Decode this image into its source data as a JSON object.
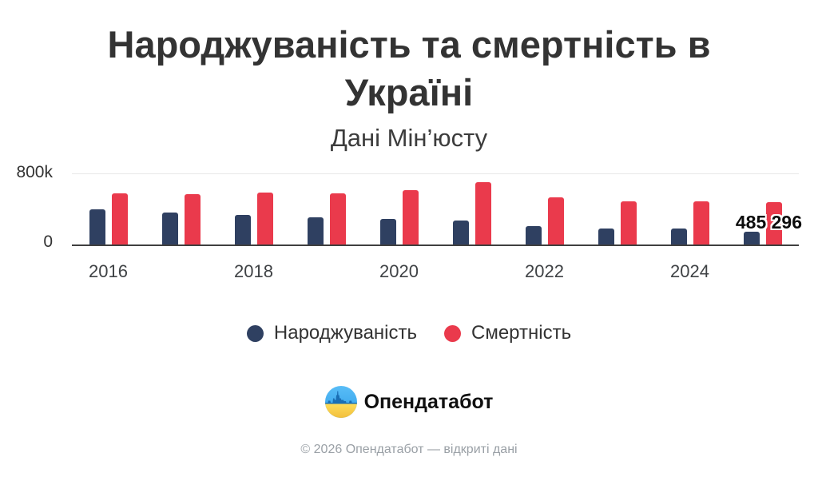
{
  "header": {
    "title": "Народжуваність та смертність в Україні",
    "subtitle": "Дані Мін’юсту"
  },
  "chart_data": {
    "type": "bar",
    "title": "Народжуваність та смертність в Україні",
    "subtitle": "Дані Мін’юсту",
    "categories": [
      "2016",
      "2017",
      "2018",
      "2019",
      "2020",
      "2021",
      "2022",
      "2023",
      "2024",
      "2025"
    ],
    "x_tick_labels": [
      "2016",
      "2018",
      "2020",
      "2022",
      "2024"
    ],
    "y_tick_labels": [
      "0",
      "800k"
    ],
    "ylim": [
      0,
      800000
    ],
    "grid": "single light horizontal gridline at 800k, dark baseline at 0",
    "legend_position": "bottom-center",
    "series": [
      {
        "name": "Народжуваність",
        "color": "#2f4061",
        "values": [
          400000,
          367000,
          334000,
          307000,
          294000,
          274000,
          211000,
          181000,
          179000,
          150000
        ]
      },
      {
        "name": "Смертність",
        "color": "#ea3a4c",
        "values": [
          584000,
          573000,
          588000,
          581000,
          616000,
          706000,
          535000,
          494000,
          493000,
          485296
        ]
      }
    ],
    "annotations": [
      {
        "text": "485 296",
        "series_index": 1,
        "category_index": 9
      }
    ]
  },
  "brand": {
    "name": "Опендатабот"
  },
  "footer": {
    "text": "© 2026 Опендатабот — відкриті дані"
  },
  "colors": {
    "births": "#2f4061",
    "deaths": "#ea3a4c",
    "gridline": "#e8e8e8",
    "axis": "#3f3f3f",
    "text": "#333333",
    "muted": "#9aa0a6",
    "logo_blue": "#3ba0ea",
    "logo_yellow": "#f6c83f",
    "logo_silhouette": "#1b6fb5"
  }
}
